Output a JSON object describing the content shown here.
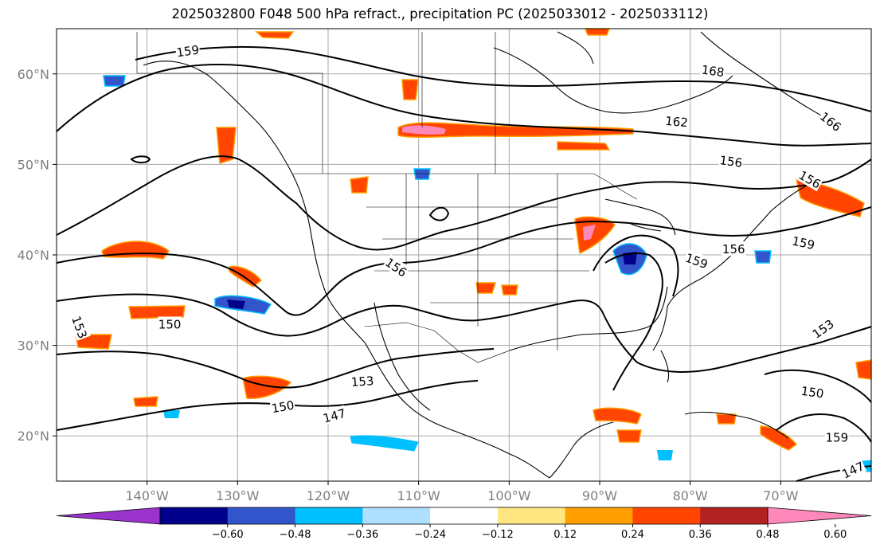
{
  "title": "2025032800 F048 500 hPa refract., precipitation PC (2025033012 - 2025033112)",
  "map": {
    "lon_range": [
      -150,
      -60
    ],
    "lat_range": [
      15,
      65
    ],
    "grid": true,
    "lat_ticks": [
      {
        "value": 20,
        "label": "20°N"
      },
      {
        "value": 30,
        "label": "30°N"
      },
      {
        "value": 40,
        "label": "40°N"
      },
      {
        "value": 50,
        "label": "50°N"
      },
      {
        "value": 60,
        "label": "60°N"
      }
    ],
    "lon_ticks": [
      {
        "value": -140,
        "label": "140°W"
      },
      {
        "value": -130,
        "label": "130°W"
      },
      {
        "value": -120,
        "label": "120°W"
      },
      {
        "value": -110,
        "label": "110°W"
      },
      {
        "value": -100,
        "label": "100°W"
      },
      {
        "value": -90,
        "label": "90°W"
      },
      {
        "value": -80,
        "label": "80°W"
      },
      {
        "value": -70,
        "label": "70°W"
      }
    ],
    "contour_labels": [
      {
        "text": "159",
        "lon": -135.5,
        "lat": 62.5,
        "rotate": -8
      },
      {
        "text": "168",
        "lon": -77.5,
        "lat": 60.3,
        "rotate": 8
      },
      {
        "text": "162",
        "lon": -81.5,
        "lat": 54.7,
        "rotate": 5
      },
      {
        "text": "166",
        "lon": -64.5,
        "lat": 54.7,
        "rotate": 38
      },
      {
        "text": "156",
        "lon": -75.5,
        "lat": 50.3,
        "rotate": 8
      },
      {
        "text": "156",
        "lon": -66.8,
        "lat": 48.3,
        "rotate": 30
      },
      {
        "text": "159",
        "lon": -67.5,
        "lat": 41.3,
        "rotate": 12
      },
      {
        "text": "156",
        "lon": -75.2,
        "lat": 40.6,
        "rotate": 0
      },
      {
        "text": "159",
        "lon": -79.3,
        "lat": 39.3,
        "rotate": 20
      },
      {
        "text": "156",
        "lon": -112.5,
        "lat": 38.6,
        "rotate": 35
      },
      {
        "text": "150",
        "lon": -137.5,
        "lat": 32.3,
        "rotate": 0
      },
      {
        "text": "153",
        "lon": -147.5,
        "lat": 32.0,
        "rotate": 70
      },
      {
        "text": "153",
        "lon": -65.3,
        "lat": 31.8,
        "rotate": -35
      },
      {
        "text": "153",
        "lon": -116.2,
        "lat": 26.0,
        "rotate": -4
      },
      {
        "text": "150",
        "lon": -125.0,
        "lat": 23.2,
        "rotate": -10
      },
      {
        "text": "147",
        "lon": -119.3,
        "lat": 22.2,
        "rotate": -15
      },
      {
        "text": "150",
        "lon": -66.5,
        "lat": 24.8,
        "rotate": 8
      },
      {
        "text": "159",
        "lon": -63.8,
        "lat": 19.8,
        "rotate": 0
      },
      {
        "text": "147",
        "lon": -62.0,
        "lat": 16.2,
        "rotate": -25
      }
    ]
  },
  "colorbar": {
    "ticks": [
      "−0.60",
      "−0.48",
      "−0.36",
      "−0.24",
      "−0.12",
      "0.12",
      "0.24",
      "0.36",
      "0.48",
      "0.60"
    ],
    "under_color": "#9933cc",
    "over_color": "#ff88bb",
    "colors": [
      "#00008b",
      "#3355cc",
      "#00bfff",
      "#b0e0ff",
      "#ffffff",
      "#ffe680",
      "#ffa000",
      "#ff4500",
      "#b22222"
    ]
  }
}
